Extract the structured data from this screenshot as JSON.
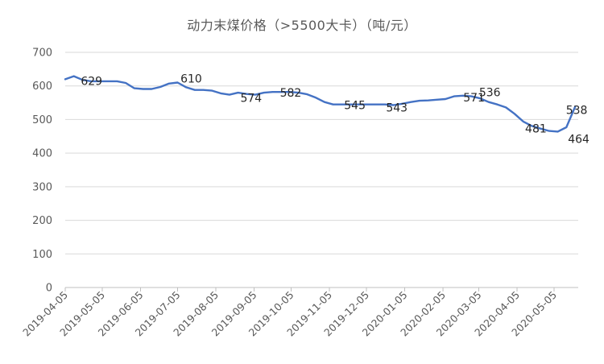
{
  "chart_data": {
    "type": "line",
    "title": "动力末煤价格（>5500大卡）（吨/元）",
    "xlabel": "",
    "ylabel": "",
    "ylim": [
      0,
      700
    ],
    "y_ticks": [
      0,
      100,
      200,
      300,
      400,
      500,
      600,
      700
    ],
    "x_tick_labels": [
      "2019-04-05",
      "2019-05-05",
      "2019-06-05",
      "2019-07-05",
      "2019-08-05",
      "2019-09-05",
      "2019-10-05",
      "2019-11-05",
      "2019-12-05",
      "2020-01-05",
      "2020-02-05",
      "2020-03-05",
      "2020-04-05",
      "2020-05-05"
    ],
    "grid": true,
    "legend": "none",
    "line_color": "#4472c4",
    "series": [
      {
        "x": [
          "2019-04-05",
          "2019-04-12",
          "2019-04-19",
          "2019-04-26",
          "2019-05-03",
          "2019-05-10",
          "2019-05-17",
          "2019-05-24",
          "2019-05-31",
          "2019-06-07",
          "2019-06-14",
          "2019-06-21",
          "2019-06-28",
          "2019-07-05",
          "2019-07-12",
          "2019-07-19",
          "2019-07-26",
          "2019-08-02",
          "2019-08-09",
          "2019-08-16",
          "2019-08-23",
          "2019-08-30",
          "2019-09-06",
          "2019-09-13",
          "2019-09-20",
          "2019-09-27",
          "2019-10-04",
          "2019-10-11",
          "2019-10-18",
          "2019-10-25",
          "2019-11-01",
          "2019-11-08",
          "2019-11-15",
          "2019-11-22",
          "2019-11-29",
          "2019-12-06",
          "2019-12-13",
          "2019-12-20",
          "2019-12-27",
          "2020-01-03",
          "2020-01-10",
          "2020-01-17",
          "2020-01-24",
          "2020-01-31",
          "2020-02-07",
          "2020-02-14",
          "2020-02-21",
          "2020-02-28",
          "2020-03-06",
          "2020-03-13",
          "2020-03-20",
          "2020-03-27",
          "2020-04-03",
          "2020-04-10",
          "2020-04-17",
          "2020-04-24",
          "2020-05-01",
          "2020-05-08",
          "2020-05-15",
          "2020-05-22"
        ],
        "y": [
          620,
          629,
          618,
          614,
          614,
          614,
          614,
          609,
          593,
          591,
          591,
          597,
          607,
          610,
          596,
          588,
          588,
          586,
          578,
          574,
          580,
          576,
          574,
          580,
          582,
          582,
          582,
          580,
          575,
          565,
          552,
          545,
          545,
          545,
          545,
          545,
          545,
          545,
          543,
          547,
          552,
          556,
          557,
          559,
          561,
          569,
          571,
          569,
          563,
          552,
          545,
          536,
          517,
          494,
          481,
          473,
          466,
          464,
          477,
          538
        ],
        "point_labels": [
          {
            "x": "2019-04-12",
            "text": "629"
          },
          {
            "x": "2019-07-05",
            "text": "610"
          },
          {
            "x": "2019-08-16",
            "text": "574"
          },
          {
            "x": "2019-10-04",
            "text": "582"
          },
          {
            "x": "2019-11-08",
            "text": "545"
          },
          {
            "x": "2019-12-27",
            "text": "543"
          },
          {
            "x": "2020-02-21",
            "text": "571"
          },
          {
            "x": "2020-03-27",
            "text": "536"
          },
          {
            "x": "2020-04-17",
            "text": "481"
          },
          {
            "x": "2020-05-08",
            "text": "464"
          },
          {
            "x": "2020-05-22",
            "text": "538"
          }
        ]
      }
    ]
  }
}
